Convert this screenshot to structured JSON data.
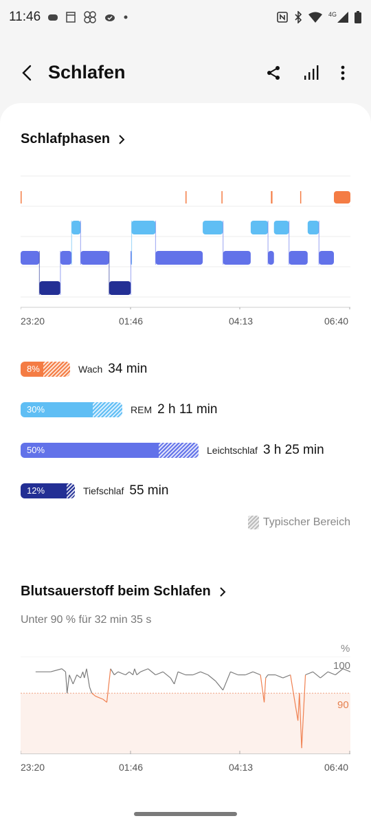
{
  "status_bar": {
    "time": "11:46",
    "network": "4G",
    "left_icons": [
      "unlocking-icon",
      "notes-icon",
      "pinwheel-icon",
      "cloud-check-icon",
      "dot-icon"
    ],
    "right_icons": [
      "nfc-icon",
      "bluetooth-icon",
      "wifi-icon",
      "signal-icon",
      "battery-icon"
    ]
  },
  "header": {
    "title": "Schlafen",
    "actions": [
      "back-icon",
      "share-icon",
      "chart-icon",
      "more-icon"
    ]
  },
  "colors": {
    "wach": "#f47c44",
    "rem": "#5fbef4",
    "leicht": "#6272e9",
    "tief": "#232f94",
    "spo2_line": "#7b7b7b",
    "spo2_low": "#f08050"
  },
  "sleep_phases": {
    "title": "Schlafphasen",
    "x_labels": [
      "23:20",
      "01:46",
      "04:13",
      "06:40"
    ],
    "chart_data": {
      "type": "area",
      "y_levels": [
        "Wach",
        "REM",
        "Leichtschlaf",
        "Tiefschlaf"
      ],
      "x": [
        "23:20",
        "01:46",
        "04:13",
        "06:40"
      ],
      "segments": [
        {
          "stage": "Wach",
          "start_min": 0,
          "end_min": 0.5
        },
        {
          "stage": "Leichtschlaf",
          "start_min": 0,
          "end_min": 25
        },
        {
          "stage": "Tiefschlaf",
          "start_min": 25,
          "end_min": 53
        },
        {
          "stage": "Leichtschlaf",
          "start_min": 53,
          "end_min": 68
        },
        {
          "stage": "REM",
          "start_min": 68,
          "end_min": 80
        },
        {
          "stage": "Leichtschlaf",
          "start_min": 80,
          "end_min": 118
        },
        {
          "stage": "Tiefschlaf",
          "start_min": 118,
          "end_min": 147
        },
        {
          "stage": "Leichtschlaf",
          "start_min": 147,
          "end_min": 148
        },
        {
          "stage": "REM",
          "start_min": 148,
          "end_min": 180
        },
        {
          "stage": "Leichtschlaf",
          "start_min": 180,
          "end_min": 243
        },
        {
          "stage": "Wach",
          "start_min": 220,
          "end_min": 221
        },
        {
          "stage": "REM",
          "start_min": 243,
          "end_min": 270
        },
        {
          "stage": "Leichtschlaf",
          "start_min": 270,
          "end_min": 307
        },
        {
          "stage": "Wach",
          "start_min": 268,
          "end_min": 269
        },
        {
          "stage": "REM",
          "start_min": 307,
          "end_min": 330
        },
        {
          "stage": "Leichtschlaf",
          "start_min": 330,
          "end_min": 338
        },
        {
          "stage": "Wach",
          "start_min": 334,
          "end_min": 336
        },
        {
          "stage": "REM",
          "start_min": 338,
          "end_min": 358
        },
        {
          "stage": "Leichtschlaf",
          "start_min": 358,
          "end_min": 383
        },
        {
          "stage": "Wach",
          "start_min": 373,
          "end_min": 374
        },
        {
          "stage": "REM",
          "start_min": 383,
          "end_min": 398
        },
        {
          "stage": "Leichtschlaf",
          "start_min": 398,
          "end_min": 418
        },
        {
          "stage": "Wach",
          "start_min": 418,
          "end_min": 440
        }
      ],
      "total_minutes": 440
    }
  },
  "stages": [
    {
      "key": "wach",
      "percent": 8,
      "percent_label": "8%",
      "name": "Wach",
      "duration": "34 min",
      "typ_from": 0.08,
      "typ_to": 0.17
    },
    {
      "key": "rem",
      "percent": 30,
      "percent_label": "30%",
      "name": "REM",
      "duration": "2 h 11 min",
      "typ_from": 0.2,
      "typ_to": 0.31
    },
    {
      "key": "leicht",
      "percent": 50,
      "percent_label": "50%",
      "name": "Leichtschlaf",
      "duration": "3 h 25 min",
      "typ_from": 0.5,
      "typ_to": 0.6
    },
    {
      "key": "tief",
      "percent": 12,
      "percent_label": "12%",
      "name": "Tiefschlaf",
      "duration": "55 min",
      "typ_from": 0.12,
      "typ_to": 0.15
    }
  ],
  "typical_range_label": "Typischer Bereich",
  "spo2": {
    "title": "Blutsauerstoff beim Schlafen",
    "subtitle": "Unter 90 % für 32 min 35 s",
    "unit": "%",
    "x_labels": [
      "23:20",
      "01:46",
      "04:13",
      "06:40"
    ],
    "chart_data": {
      "type": "line",
      "x_unit": "minutes since 23:20",
      "x": [
        20,
        40,
        55,
        60,
        62,
        65,
        70,
        75,
        80,
        83,
        85,
        88,
        92,
        95,
        100,
        110,
        115,
        120,
        125,
        130,
        140,
        145,
        150,
        152,
        155,
        160,
        170,
        180,
        190,
        200,
        205,
        210,
        220,
        230,
        240,
        250,
        260,
        270,
        280,
        290,
        300,
        310,
        320,
        325,
        327,
        330,
        340,
        350,
        360,
        370,
        372,
        375,
        380,
        390,
        400,
        410,
        420,
        430,
        440
      ],
      "y": [
        97,
        97,
        98,
        97,
        90,
        96,
        93,
        96,
        95,
        97,
        95,
        98,
        92,
        90,
        89,
        88,
        87,
        98,
        96,
        97,
        96,
        97,
        96,
        98,
        96,
        97,
        98,
        96,
        97,
        95,
        93,
        97,
        96,
        96,
        97,
        96,
        94,
        91,
        97,
        96,
        96,
        97,
        96,
        87,
        95,
        96,
        96,
        95,
        96,
        81,
        90,
        72,
        96,
        97,
        95,
        97,
        96,
        98,
        97
      ],
      "y_ticks": [
        90,
        100
      ],
      "threshold": 90,
      "ylim": [
        70,
        102
      ]
    }
  }
}
